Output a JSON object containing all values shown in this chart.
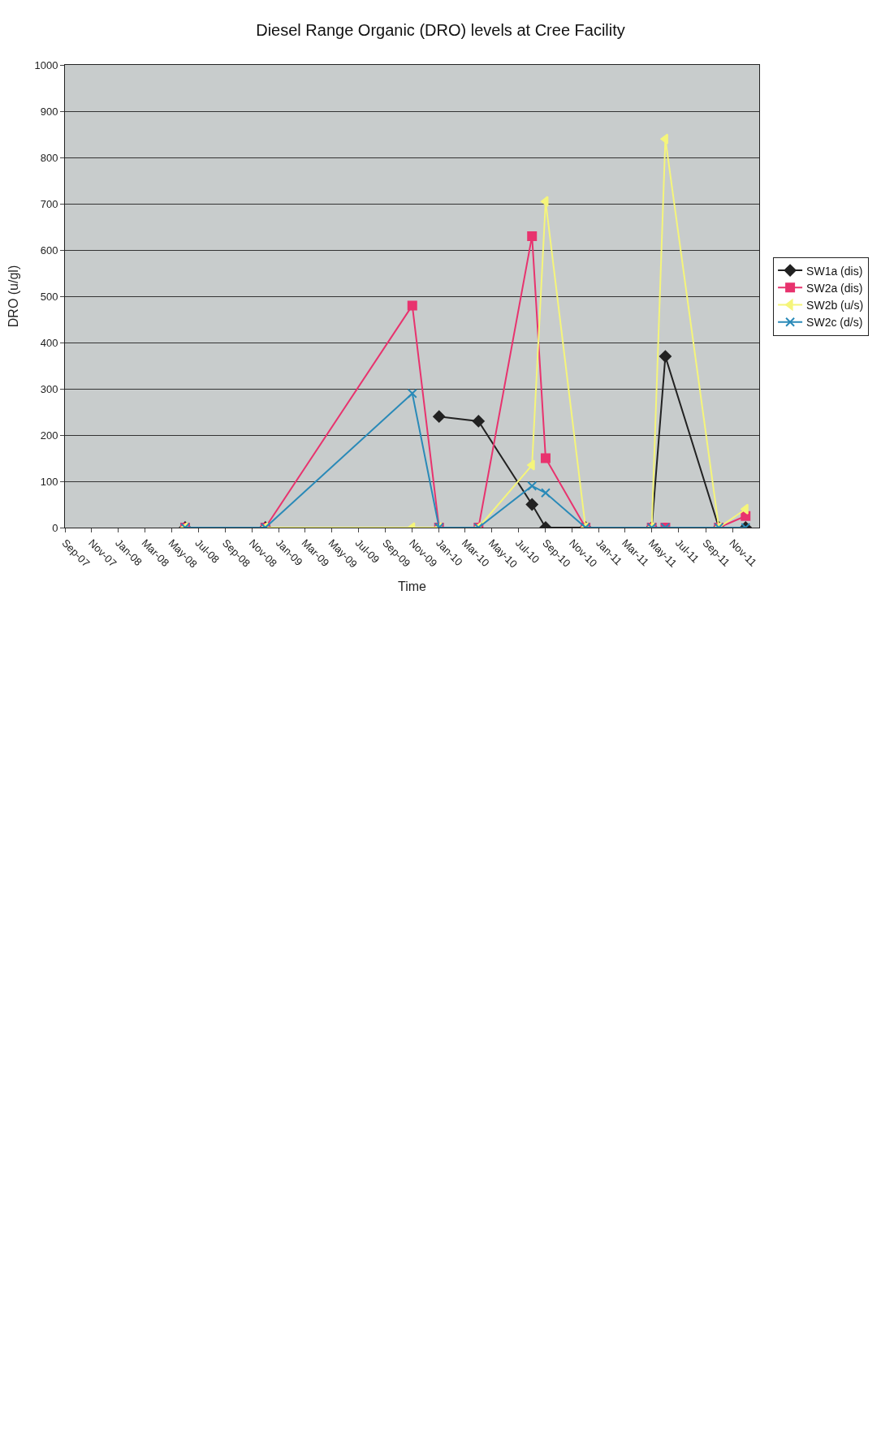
{
  "chart_data": {
    "type": "line",
    "title": "Diesel Range Organic (DRO) levels at Cree Facility",
    "xlabel": "Time",
    "ylabel": "DRO (u/gl)",
    "x": [
      "2008-06",
      "2008-12",
      "2009-11",
      "2010-01",
      "2010-04",
      "2010-08",
      "2010-09",
      "2010-12",
      "2011-05",
      "2011-06",
      "2011-10",
      "2011-12"
    ],
    "series": [
      {
        "name": "SW1a (dis)",
        "color": "#222222",
        "marker": "diamond",
        "values": [
          0,
          0,
          null,
          240,
          230,
          50,
          0,
          0,
          0,
          370,
          0,
          0
        ]
      },
      {
        "name": "SW2a (dis)",
        "color": "#e8336e",
        "marker": "square",
        "values": [
          0,
          0,
          480,
          0,
          0,
          630,
          150,
          0,
          0,
          0,
          0,
          25
        ]
      },
      {
        "name": "SW2b (u/s)",
        "color": "#f5f57a",
        "marker": "triangle",
        "values": [
          0,
          0,
          0,
          0,
          0,
          135,
          705,
          0,
          0,
          840,
          0,
          40
        ]
      },
      {
        "name": "SW2c (d/s)",
        "color": "#2a8ab8",
        "marker": "cross",
        "values": [
          0,
          0,
          290,
          0,
          0,
          90,
          75,
          0,
          0,
          0,
          0,
          0
        ]
      }
    ],
    "xlim": [
      "2007-09",
      "2012-01"
    ],
    "xticks": [
      {
        "value": "2007-09",
        "label": "Sep-07"
      },
      {
        "value": "2007-11",
        "label": "Nov-07"
      },
      {
        "value": "2008-01",
        "label": "Jan-08"
      },
      {
        "value": "2008-03",
        "label": "Mar-08"
      },
      {
        "value": "2008-05",
        "label": "May-08"
      },
      {
        "value": "2008-07",
        "label": "Jul-08"
      },
      {
        "value": "2008-09",
        "label": "Sep-08"
      },
      {
        "value": "2008-11",
        "label": "Nov-08"
      },
      {
        "value": "2009-01",
        "label": "Jan-09"
      },
      {
        "value": "2009-03",
        "label": "Mar-09"
      },
      {
        "value": "2009-05",
        "label": "May-09"
      },
      {
        "value": "2009-07",
        "label": "Jul-09"
      },
      {
        "value": "2009-09",
        "label": "Sep-09"
      },
      {
        "value": "2009-11",
        "label": "Nov-09"
      },
      {
        "value": "2010-01",
        "label": "Jan-10"
      },
      {
        "value": "2010-03",
        "label": "Mar-10"
      },
      {
        "value": "2010-05",
        "label": "May-10"
      },
      {
        "value": "2010-07",
        "label": "Jul-10"
      },
      {
        "value": "2010-09",
        "label": "Sep-10"
      },
      {
        "value": "2010-11",
        "label": "Nov-10"
      },
      {
        "value": "2011-01",
        "label": "Jan-11"
      },
      {
        "value": "2011-03",
        "label": "Mar-11"
      },
      {
        "value": "2011-05",
        "label": "May-11"
      },
      {
        "value": "2011-07",
        "label": "Jul-11"
      },
      {
        "value": "2011-09",
        "label": "Sep-11"
      },
      {
        "value": "2011-11",
        "label": "Nov-11"
      }
    ],
    "ylim": [
      0,
      1000
    ],
    "yticks": [
      0,
      100,
      200,
      300,
      400,
      500,
      600,
      700,
      800,
      900,
      1000
    ],
    "grid": "y",
    "legend": "right",
    "line_style": "solid"
  }
}
